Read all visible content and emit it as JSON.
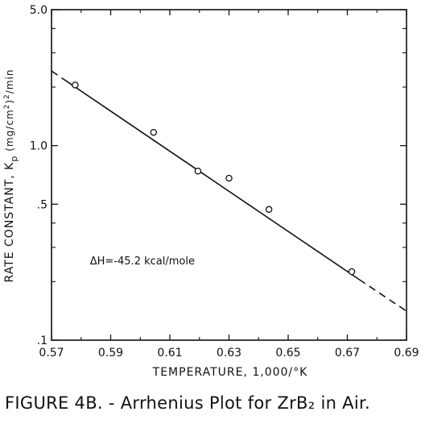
{
  "chart_data": {
    "type": "scatter",
    "xlabel": "TEMPERATURE, 1,000/°K",
    "ylabel": "RATE CONSTANT, K",
    "ylabel_sub": "p",
    "ylabel_units": "(mg/cm",
    "ylabel_units_sup": "2",
    "ylabel_units_tail": ")",
    "ylabel_units_sup2": "2",
    "ylabel_units_end": "/min",
    "xlim": [
      0.57,
      0.69
    ],
    "ylim": [
      0.1,
      5.0
    ],
    "yscale": "log",
    "x_ticks": [
      "0.57",
      "0.59",
      "0.61",
      "0.63",
      "0.65",
      "0.67",
      "0.69"
    ],
    "y_tick_labels": [
      {
        "value": 5.0,
        "label": "5.0"
      },
      {
        "value": 1.0,
        "label": "1.0"
      },
      {
        "value": 0.5,
        "label": ".5"
      },
      {
        "value": 0.1,
        "label": ".1"
      }
    ],
    "y_minor_ticks": [
      0.2,
      0.3,
      0.4,
      2,
      3,
      4
    ],
    "grid": false,
    "points": [
      {
        "x": 0.578,
        "y": 2.05
      },
      {
        "x": 0.6045,
        "y": 1.17
      },
      {
        "x": 0.6195,
        "y": 0.74
      },
      {
        "x": 0.63,
        "y": 0.68
      },
      {
        "x": 0.6435,
        "y": 0.47
      },
      {
        "x": 0.6715,
        "y": 0.225
      }
    ],
    "fit_line": {
      "solid": [
        [
          0.574,
          2.2
        ],
        [
          0.674,
          0.205
        ]
      ],
      "dashed_start": [
        [
          0.57,
          2.42
        ],
        [
          0.574,
          2.2
        ]
      ],
      "dashed_end": [
        [
          0.674,
          0.205
        ],
        [
          0.69,
          0.141
        ]
      ]
    },
    "annotation": "ΔH=-45.2 kcal/mole",
    "annotation_pos": {
      "x": 0.583,
      "y": 0.245
    }
  },
  "caption": "FIGURE 4B. - Arrhenius Plot for ZrB₂ in Air."
}
